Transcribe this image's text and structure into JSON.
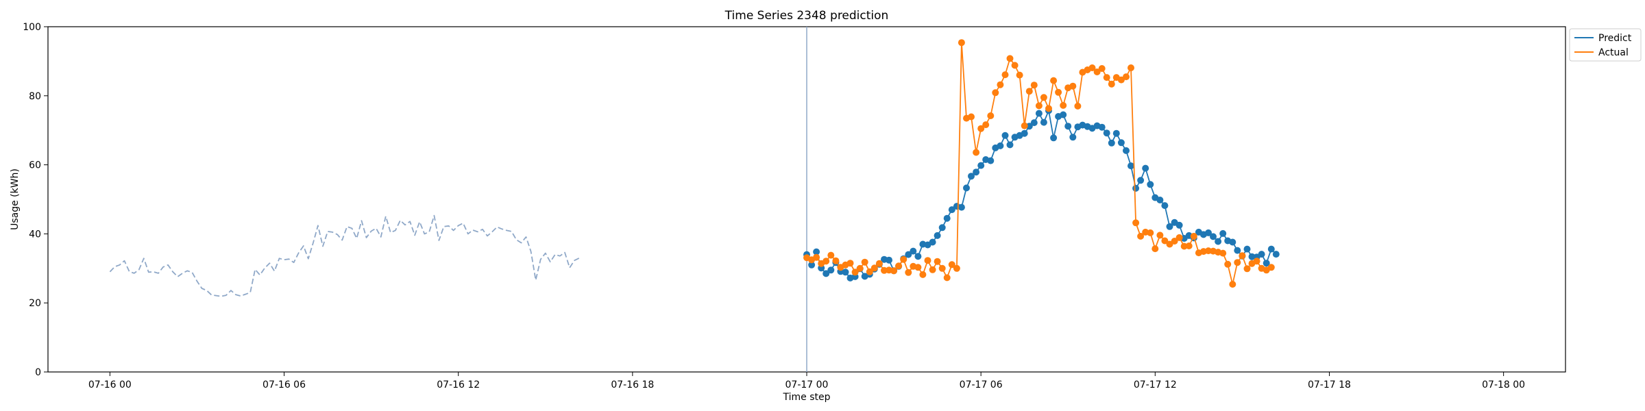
{
  "chart_data": {
    "type": "line",
    "title": "Time Series 2348 prediction",
    "xlabel": "Time step",
    "ylabel": "Usage (kWh)",
    "ylim": [
      0,
      100
    ],
    "yticks": [
      0,
      20,
      40,
      60,
      80,
      100
    ],
    "xlim": [
      "2022-07-15 21:52",
      "2022-07-18 02:08"
    ],
    "xticks": [
      {
        "t": "2022-07-16 00:00",
        "label": "07-16 00"
      },
      {
        "t": "2022-07-16 06:00",
        "label": "07-16 06"
      },
      {
        "t": "2022-07-16 12:00",
        "label": "07-16 12"
      },
      {
        "t": "2022-07-16 18:00",
        "label": "07-16 18"
      },
      {
        "t": "2022-07-17 00:00",
        "label": "07-17 00"
      },
      {
        "t": "2022-07-17 06:00",
        "label": "07-17 06"
      },
      {
        "t": "2022-07-17 12:00",
        "label": "07-17 12"
      },
      {
        "t": "2022-07-17 18:00",
        "label": "07-17 18"
      },
      {
        "t": "2022-07-18 00:00",
        "label": "07-18 00"
      }
    ],
    "split_marker": "2022-07-17 00:00",
    "interval_minutes": 10,
    "legend": {
      "position": "top-right",
      "entries": [
        "Predict",
        "Actual"
      ]
    },
    "colors": {
      "history": "#8fa8c8",
      "predict": "#1f77b4",
      "actual": "#ff7f0e",
      "split_line": "#8fa8c8"
    },
    "history": {
      "start": "2022-07-16 00:00",
      "step_minutes": 10,
      "values": [
        29.0,
        30.5,
        31.0,
        32.2,
        29.1,
        28.6,
        29.6,
        32.9,
        28.9,
        29.0,
        28.6,
        30.4,
        31.0,
        29.0,
        27.6,
        28.6,
        29.3,
        28.8,
        26.3,
        24.2,
        23.6,
        22.3,
        22.1,
        21.9,
        22.2,
        23.6,
        22.4,
        22.0,
        22.5,
        23.0,
        29.7,
        28.1,
        30.1,
        31.5,
        29.2,
        32.9,
        32.5,
        32.7,
        31.7,
        34.5,
        36.5,
        32.8,
        37.4,
        42.4,
        36.4,
        40.7,
        40.5,
        39.8,
        38.2,
        42.1,
        41.6,
        38.7,
        43.8,
        38.9,
        40.8,
        41.6,
        39.1,
        45.1,
        40.4,
        41.0,
        43.9,
        42.6,
        43.6,
        39.6,
        43.5,
        40.0,
        40.6,
        45.3,
        38.1,
        42.1,
        42.3,
        41.0,
        42.4,
        43.1,
        40.0,
        41.1,
        40.6,
        41.3,
        39.4,
        40.6,
        42.0,
        41.4,
        41.0,
        40.7,
        38.3,
        37.4,
        39.1,
        34.9,
        26.6,
        32.6,
        34.4,
        31.9,
        34.0,
        33.6,
        34.6,
        30.2,
        32.3,
        33.0
      ]
    },
    "series": [
      {
        "name": "Predict",
        "start": "2022-07-17 00:00",
        "step_minutes": 10,
        "values": [
          34.0,
          31.0,
          34.8,
          30.1,
          28.5,
          29.5,
          31.7,
          29.1,
          28.9,
          27.2,
          27.6,
          29.9,
          27.7,
          28.3,
          29.8,
          31.2,
          32.6,
          32.4,
          29.3,
          30.6,
          32.8,
          34.0,
          35.0,
          33.5,
          37.0,
          36.8,
          37.6,
          39.5,
          41.8,
          44.5,
          47.0,
          48.0,
          47.7,
          53.3,
          56.7,
          57.9,
          59.8,
          61.5,
          61.2,
          64.9,
          65.5,
          68.5,
          65.8,
          68.0,
          68.5,
          69.1,
          71.2,
          72.2,
          74.9,
          72.3,
          75.7,
          67.8,
          74.0,
          74.5,
          71.2,
          68.0,
          71.0,
          71.5,
          71.1,
          70.6,
          71.3,
          70.9,
          69.2,
          66.3,
          69.1,
          66.4,
          64.1,
          59.7,
          53.2,
          55.5,
          59.0,
          54.3,
          50.5,
          49.8,
          48.2,
          42.1,
          43.3,
          42.5,
          38.7,
          39.5,
          38.8,
          40.5,
          39.8,
          40.3,
          39.2,
          37.8,
          40.1,
          38.0,
          37.6,
          35.2,
          33.6,
          35.6,
          33.4,
          33.3,
          34.1,
          31.5,
          35.6,
          34.1
        ]
      },
      {
        "name": "Actual",
        "start": "2022-07-17 00:00",
        "step_minutes": 10,
        "values": [
          33.1,
          32.5,
          33.2,
          31.4,
          32.1,
          33.8,
          32.2,
          30.3,
          31.0,
          31.5,
          28.9,
          30.0,
          31.8,
          29.0,
          30.1,
          31.4,
          29.4,
          29.5,
          29.3,
          30.7,
          32.6,
          28.8,
          30.6,
          30.3,
          28.2,
          32.3,
          29.6,
          32.0,
          30.0,
          27.3,
          31.1,
          30.0,
          95.4,
          73.5,
          73.9,
          63.6,
          70.5,
          71.6,
          74.2,
          80.9,
          83.2,
          86.1,
          90.8,
          88.8,
          86.0,
          71.3,
          81.3,
          83.1,
          77.1,
          79.5,
          76.3,
          84.4,
          81.0,
          77.2,
          82.3,
          82.8,
          77.0,
          86.8,
          87.5,
          88.1,
          86.9,
          87.9,
          85.3,
          83.4,
          85.3,
          84.6,
          85.5,
          88.1,
          43.2,
          39.3,
          40.5,
          40.3,
          35.7,
          39.6,
          38.0,
          37.0,
          37.9,
          38.9,
          36.4,
          36.5,
          39.3,
          34.5,
          34.9,
          35.1,
          35.0,
          34.7,
          34.4,
          31.2,
          25.4,
          31.7,
          33.7,
          29.9,
          31.4,
          32.1,
          30.0,
          29.5,
          30.3
        ]
      }
    ]
  }
}
